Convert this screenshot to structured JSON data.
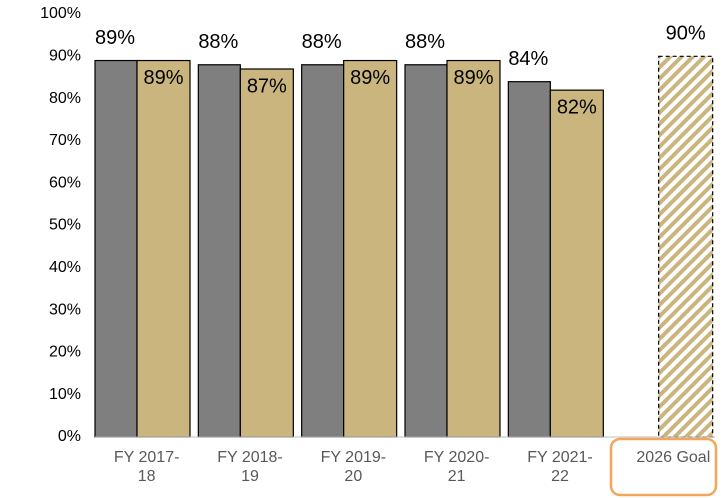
{
  "chart_data": {
    "type": "bar",
    "categories": [
      "FY 2017-18",
      "FY 2018-19",
      "FY 2019-20",
      "FY 2020-21",
      "FY 2021-22",
      "2026 Goal"
    ],
    "series": [
      {
        "color": "#7f7f7f",
        "values": [
          89,
          88,
          88,
          88,
          84,
          null
        ],
        "value_labels": [
          "89%",
          "88%",
          "88%",
          "88%",
          "84%",
          null
        ]
      },
      {
        "color": "#c9b57d",
        "values": [
          89,
          87,
          89,
          89,
          82,
          null
        ],
        "value_labels": [
          "89%",
          "87%",
          "89%",
          "89%",
          "82%",
          null
        ]
      },
      {
        "color": "#c9b57d",
        "hatched": true,
        "values": [
          null,
          null,
          null,
          null,
          null,
          90
        ],
        "value_labels": [
          null,
          null,
          null,
          null,
          null,
          "90%"
        ]
      }
    ],
    "ylim": [
      0,
      100
    ],
    "yticks": [
      {
        "value": 0,
        "label": "0%"
      },
      {
        "value": 10,
        "label": "10%"
      },
      {
        "value": 20,
        "label": "20%"
      },
      {
        "value": 30,
        "label": "30%"
      },
      {
        "value": 40,
        "label": "40%"
      },
      {
        "value": 50,
        "label": "50%"
      },
      {
        "value": 60,
        "label": "60%"
      },
      {
        "value": 70,
        "label": "70%"
      },
      {
        "value": 80,
        "label": "80%"
      },
      {
        "value": 90,
        "label": "90%"
      },
      {
        "value": 100,
        "label": "100%"
      }
    ],
    "grid": false
  }
}
